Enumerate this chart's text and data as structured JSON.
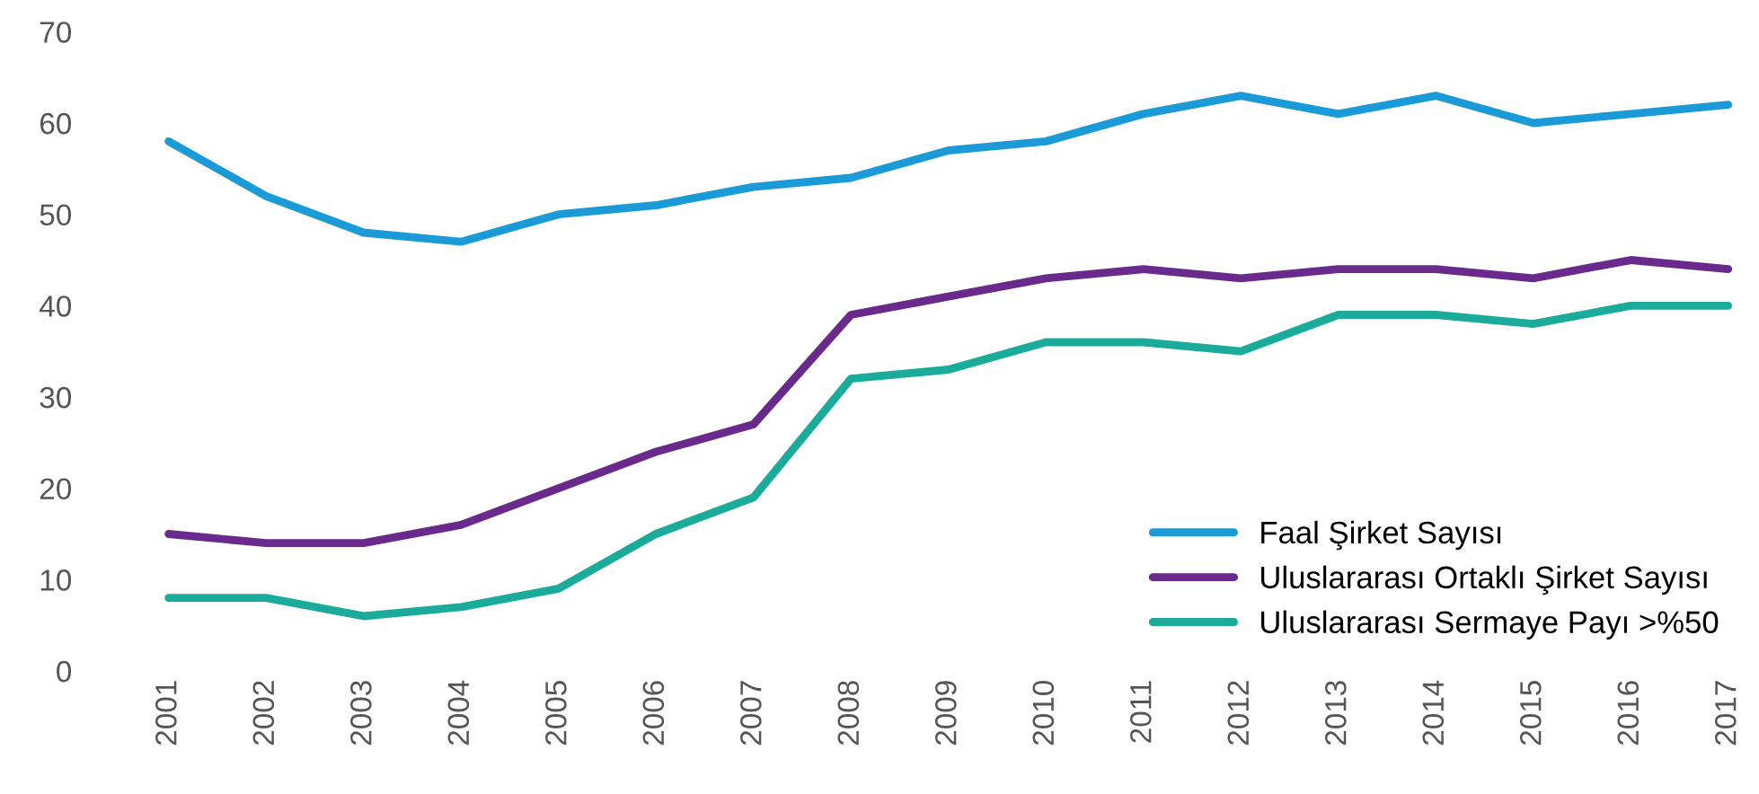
{
  "chart_data": {
    "type": "line",
    "categories": [
      "2001",
      "2002",
      "2003",
      "2004",
      "2005",
      "2006",
      "2007",
      "2008",
      "2009",
      "2010",
      "2011",
      "2012",
      "2013",
      "2014",
      "2015",
      "2016",
      "2017"
    ],
    "series": [
      {
        "name": "Faal Şirket Sayısı",
        "color": "#1a9ad6",
        "values": [
          58,
          52,
          48,
          47,
          50,
          51,
          53,
          54,
          57,
          58,
          61,
          63,
          61,
          63,
          60,
          61,
          62
        ]
      },
      {
        "name": "Uluslararası Ortaklı Şirket Sayısı",
        "color": "#6a2a8c",
        "values": [
          15,
          14,
          14,
          16,
          20,
          24,
          27,
          39,
          41,
          43,
          44,
          43,
          44,
          44,
          43,
          45,
          44
        ]
      },
      {
        "name": "Uluslararası Sermaye Payı >%50",
        "color": "#1aab9b",
        "values": [
          8,
          8,
          6,
          7,
          9,
          15,
          19,
          32,
          33,
          36,
          36,
          35,
          39,
          39,
          38,
          40,
          40
        ]
      }
    ],
    "ylim": [
      0,
      70
    ],
    "yticks": [
      0,
      10,
      20,
      30,
      40,
      50,
      60,
      70
    ],
    "grid": false,
    "legend": "bottom right",
    "marker": "none",
    "line_style": "solid"
  }
}
